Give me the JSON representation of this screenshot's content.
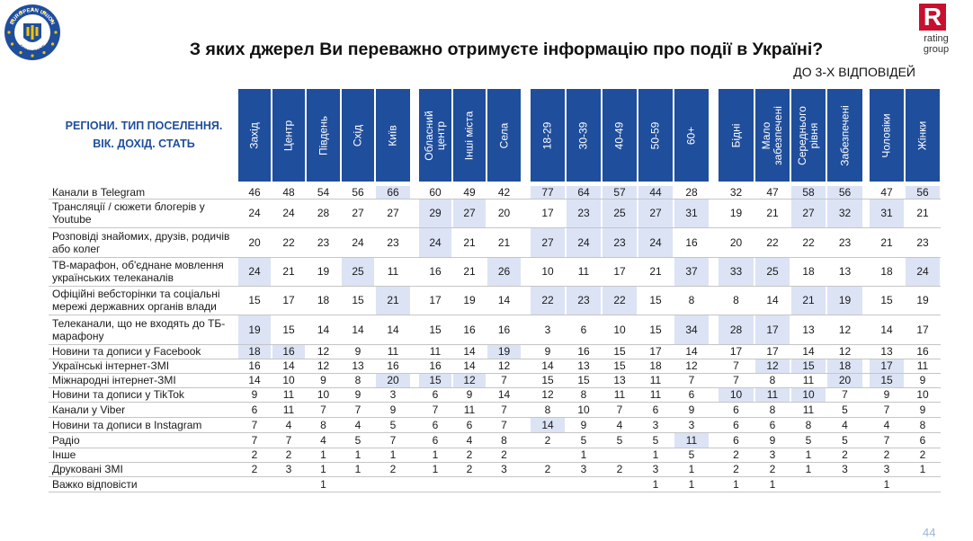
{
  "logo_left": {
    "outer_text": "EUROPEAN UNION",
    "bottom_text": "FOR UKRAINE"
  },
  "logo_right": {
    "letter": "R",
    "line1": "rating",
    "line2": "group"
  },
  "title": "З яких джерел Ви переважно отримуєте інформацію про події в Україні?",
  "subtitle": "ДО 3-Х ВІДПОВІДЕЙ",
  "row_header": [
    "РЕГІОНИ. ТИП ПОСЕЛЕННЯ.",
    "ВІК. ДОХІД. СТАТЬ"
  ],
  "columns": [
    [
      "Захід"
    ],
    [
      "Центр"
    ],
    [
      "Південь"
    ],
    [
      "Схід"
    ],
    [
      "Київ"
    ],
    [
      "Обласний",
      "центр"
    ],
    [
      "Інші міста"
    ],
    [
      "Села"
    ],
    [
      "18-29"
    ],
    [
      "30-39"
    ],
    [
      "40-49"
    ],
    [
      "50-59"
    ],
    [
      "60+"
    ],
    [
      "Бідні"
    ],
    [
      "Мало",
      "забезпечені"
    ],
    [
      "Середнього",
      "рівня"
    ],
    [
      "Забезпечені"
    ],
    [
      "Чоловіки"
    ],
    [
      "Жінки"
    ]
  ],
  "rows": [
    {
      "label": [
        "Канали в Telegram"
      ],
      "values": [
        "46",
        "48",
        "54",
        "56",
        "66",
        "60",
        "49",
        "42",
        "77",
        "64",
        "57",
        "44",
        "28",
        "32",
        "47",
        "58",
        "56",
        "47",
        "56"
      ],
      "hl": [
        4,
        8,
        9,
        10,
        11,
        15,
        16,
        18
      ]
    },
    {
      "label": [
        "Трансляції / сюжети блогерів у",
        "Youtube"
      ],
      "values": [
        "24",
        "24",
        "28",
        "27",
        "27",
        "29",
        "27",
        "20",
        "17",
        "23",
        "25",
        "27",
        "31",
        "19",
        "21",
        "27",
        "32",
        "31",
        "21"
      ],
      "hl": [
        5,
        6,
        9,
        10,
        11,
        12,
        15,
        16,
        17
      ]
    },
    {
      "label": [
        "Розповіді знайомих, друзів, родичів",
        "або колег"
      ],
      "values": [
        "20",
        "22",
        "23",
        "24",
        "23",
        "24",
        "21",
        "21",
        "27",
        "24",
        "23",
        "24",
        "16",
        "20",
        "22",
        "22",
        "23",
        "21",
        "23"
      ],
      "hl": [
        5,
        8,
        9,
        10,
        11
      ]
    },
    {
      "label": [
        "ТВ-марафон, об'єднане мовлення",
        "українських телеканалів"
      ],
      "values": [
        "24",
        "21",
        "19",
        "25",
        "11",
        "16",
        "21",
        "26",
        "10",
        "11",
        "17",
        "21",
        "37",
        "33",
        "25",
        "18",
        "13",
        "18",
        "24"
      ],
      "hl": [
        0,
        3,
        7,
        12,
        13,
        14,
        18
      ]
    },
    {
      "label": [
        "Офіційні вебсторінки та соціальні",
        "мережі державних органів влади"
      ],
      "values": [
        "15",
        "17",
        "18",
        "15",
        "21",
        "17",
        "19",
        "14",
        "22",
        "23",
        "22",
        "15",
        "8",
        "8",
        "14",
        "21",
        "19",
        "15",
        "19"
      ],
      "hl": [
        4,
        8,
        9,
        10,
        15,
        16
      ]
    },
    {
      "label": [
        "Телеканали, що не входять до ТБ-",
        "марафону"
      ],
      "values": [
        "19",
        "15",
        "14",
        "14",
        "14",
        "15",
        "16",
        "16",
        "3",
        "6",
        "10",
        "15",
        "34",
        "28",
        "17",
        "13",
        "12",
        "14",
        "17"
      ],
      "hl": [
        0,
        12,
        13,
        14
      ]
    },
    {
      "label": [
        "Новини та дописи у Facebook"
      ],
      "values": [
        "18",
        "16",
        "12",
        "9",
        "11",
        "11",
        "14",
        "19",
        "9",
        "16",
        "15",
        "17",
        "14",
        "17",
        "17",
        "14",
        "12",
        "13",
        "16"
      ],
      "hl": [
        0,
        1,
        7
      ]
    },
    {
      "label": [
        "Українські інтернет-ЗМІ"
      ],
      "values": [
        "16",
        "14",
        "12",
        "13",
        "16",
        "16",
        "14",
        "12",
        "14",
        "13",
        "15",
        "18",
        "12",
        "7",
        "12",
        "15",
        "18",
        "17",
        "11"
      ],
      "hl": [
        14,
        15,
        16,
        17
      ]
    },
    {
      "label": [
        "Міжнародні інтернет-ЗМІ"
      ],
      "values": [
        "14",
        "10",
        "9",
        "8",
        "20",
        "15",
        "12",
        "7",
        "15",
        "15",
        "13",
        "11",
        "7",
        "7",
        "8",
        "11",
        "20",
        "15",
        "9"
      ],
      "hl": [
        4,
        5,
        6,
        16,
        17
      ]
    },
    {
      "label": [
        "Новини та дописи у TikTok"
      ],
      "values": [
        "9",
        "11",
        "10",
        "9",
        "3",
        "6",
        "9",
        "14",
        "12",
        "8",
        "11",
        "11",
        "6",
        "10",
        "11",
        "10",
        "7",
        "9",
        "10"
      ],
      "hl": [
        13,
        14,
        15
      ]
    },
    {
      "label": [
        "Канали у Viber"
      ],
      "values": [
        "6",
        "11",
        "7",
        "7",
        "9",
        "7",
        "11",
        "7",
        "8",
        "10",
        "7",
        "6",
        "9",
        "6",
        "8",
        "11",
        "5",
        "7",
        "9"
      ],
      "hl": []
    },
    {
      "label": [
        "Новини та дописи в Instagram"
      ],
      "values": [
        "7",
        "4",
        "8",
        "4",
        "5",
        "6",
        "6",
        "7",
        "14",
        "9",
        "4",
        "3",
        "3",
        "6",
        "6",
        "8",
        "4",
        "4",
        "8"
      ],
      "hl": [
        8
      ]
    },
    {
      "label": [
        "Радіо"
      ],
      "values": [
        "7",
        "7",
        "4",
        "5",
        "7",
        "6",
        "4",
        "8",
        "2",
        "5",
        "5",
        "5",
        "11",
        "6",
        "9",
        "5",
        "5",
        "7",
        "6"
      ],
      "hl": [
        12
      ]
    },
    {
      "label": [
        "Інше"
      ],
      "values": [
        "2",
        "2",
        "1",
        "1",
        "1",
        "1",
        "2",
        "2",
        "",
        "1",
        "",
        "1",
        "5",
        "2",
        "3",
        "1",
        "2",
        "2",
        "2"
      ],
      "hl": []
    },
    {
      "label": [
        "Друковані ЗМІ"
      ],
      "values": [
        "2",
        "3",
        "1",
        "1",
        "2",
        "1",
        "2",
        "3",
        "2",
        "3",
        "2",
        "3",
        "1",
        "2",
        "2",
        "1",
        "3",
        "3",
        "1"
      ],
      "hl": []
    },
    {
      "label": [
        "Важко відповісти"
      ],
      "values": [
        "",
        "",
        "1",
        "",
        "",
        "",
        "",
        "",
        "",
        "",
        "",
        "1",
        "1",
        "1",
        "1",
        "",
        "",
        "1",
        ""
      ],
      "hl": []
    }
  ],
  "page_number": "44"
}
